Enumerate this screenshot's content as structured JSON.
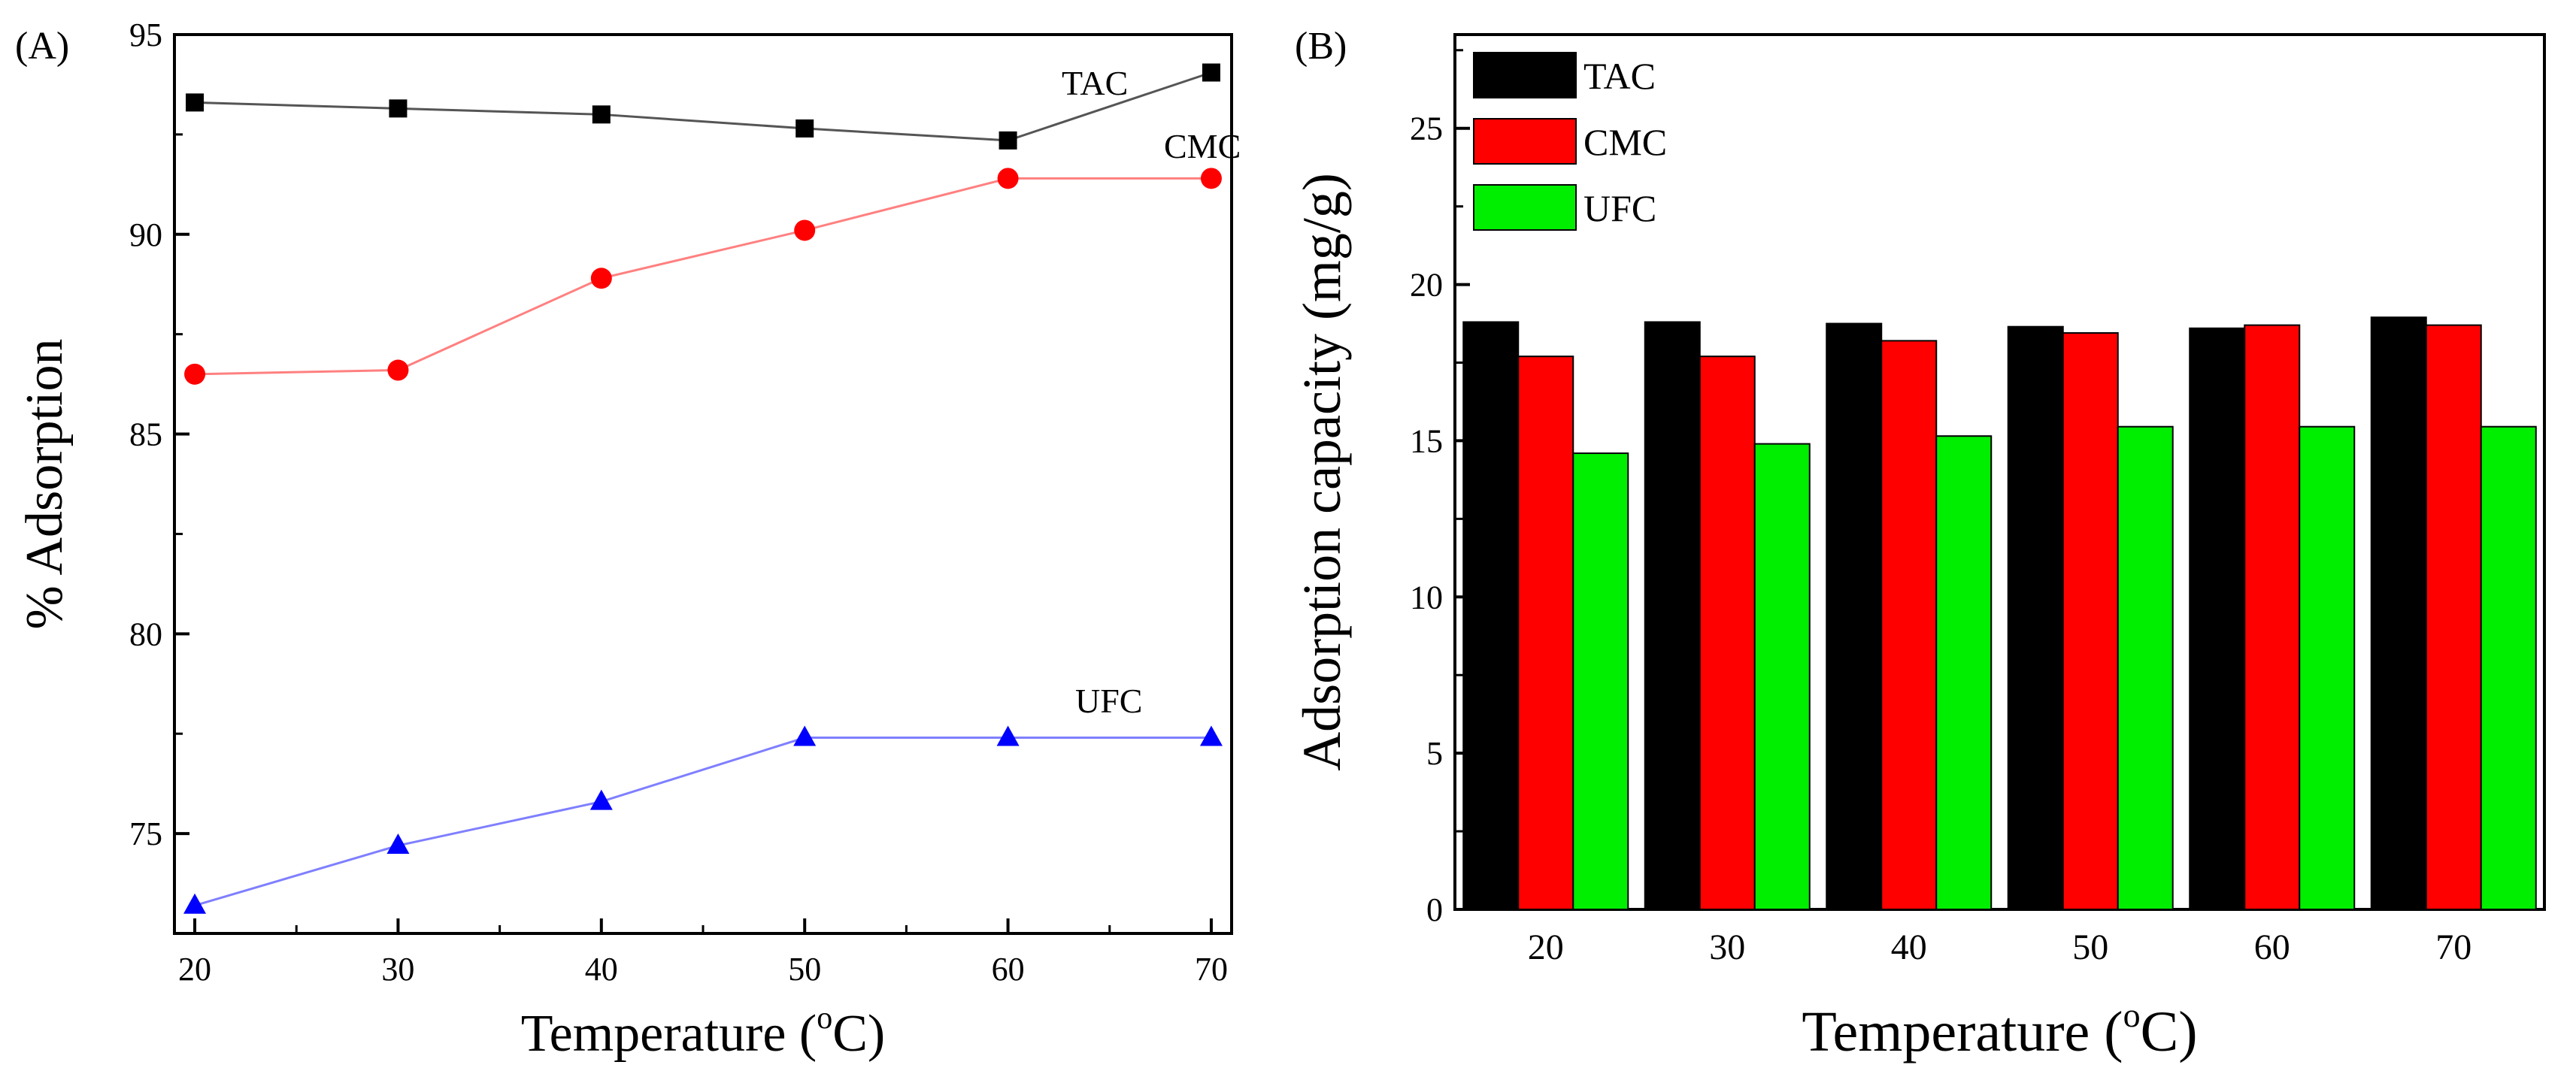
{
  "chart_data": [
    {
      "panel": "(A)",
      "type": "line",
      "xlabel": "Temperature (",
      "xlabel_sup": "o",
      "xlabel_end": "C)",
      "ylabel": "% Adsorption",
      "x": [
        20,
        30,
        40,
        50,
        60,
        70
      ],
      "xlim": [
        19,
        71
      ],
      "ylim": [
        72.5,
        95
      ],
      "xticks": [
        20,
        30,
        40,
        50,
        60,
        70
      ],
      "yticks": [
        75,
        80,
        85,
        90,
        95
      ],
      "series": [
        {
          "name": "TAC",
          "marker": "square",
          "color": "#000000",
          "line_color": "#555555",
          "values": [
            93.3,
            93.15,
            93.0,
            92.65,
            92.35,
            94.05
          ]
        },
        {
          "name": "CMC",
          "marker": "circle",
          "color": "#ff0000",
          "line_color": "#ff8080",
          "values": [
            86.5,
            86.6,
            88.9,
            90.1,
            91.4,
            91.4
          ]
        },
        {
          "name": "UFC",
          "marker": "triangle",
          "color": "#0000ff",
          "line_color": "#7f7fff",
          "values": [
            73.2,
            74.7,
            75.8,
            77.4,
            77.4,
            77.4
          ]
        }
      ]
    },
    {
      "panel": "(B)",
      "type": "bar",
      "xlabel": "Temperature (",
      "xlabel_sup": "o",
      "xlabel_end": "C)",
      "ylabel": "Adsorption capacity (mg/g)",
      "categories": [
        "20",
        "30",
        "40",
        "50",
        "60",
        "70"
      ],
      "ylim": [
        0,
        28
      ],
      "yticks": [
        0,
        5,
        10,
        15,
        20,
        25
      ],
      "legend_position": "top-left",
      "series": [
        {
          "name": "TAC",
          "color": "#000000",
          "values": [
            18.8,
            18.8,
            18.75,
            18.65,
            18.6,
            18.95
          ]
        },
        {
          "name": "CMC",
          "color": "#ff0000",
          "values": [
            17.7,
            17.7,
            18.2,
            18.45,
            18.7,
            18.7
          ]
        },
        {
          "name": "UFC",
          "color": "#00ee00",
          "values": [
            14.6,
            14.9,
            15.15,
            15.45,
            15.45,
            15.45
          ]
        }
      ]
    }
  ]
}
